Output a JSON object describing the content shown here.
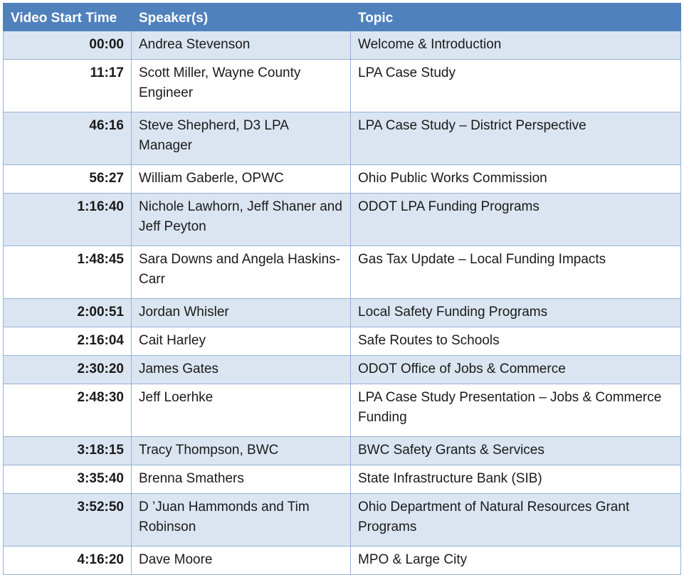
{
  "headers": {
    "time": "Video Start Time",
    "speaker": "Speaker(s)",
    "topic": "Topic"
  },
  "rows": [
    {
      "time": "00:00",
      "speaker": "Andrea Stevenson",
      "topic": "Welcome & Introduction"
    },
    {
      "time": "11:17",
      "speaker": "Scott Miller, Wayne County Engineer",
      "topic": "LPA Case Study"
    },
    {
      "time": "46:16",
      "speaker": "Steve Shepherd, D3 LPA Manager",
      "topic": "LPA Case Study – District Perspective"
    },
    {
      "time": "56:27",
      "speaker": "William Gaberle, OPWC",
      "topic": "Ohio Public Works Commission"
    },
    {
      "time": "1:16:40",
      "speaker": "Nichole Lawhorn, Jeff Shaner and Jeff Peyton",
      "topic": "ODOT LPA Funding Programs"
    },
    {
      "time": "1:48:45",
      "speaker": "Sara Downs and Angela Haskins-Carr",
      "topic": "Gas Tax Update – Local Funding Impacts"
    },
    {
      "time": "2:00:51",
      "speaker": "Jordan Whisler",
      "topic": "Local Safety Funding Programs"
    },
    {
      "time": "2:16:04",
      "speaker": "Cait Harley",
      "topic": "Safe Routes to Schools"
    },
    {
      "time": "2:30:20",
      "speaker": "James Gates",
      "topic": "ODOT Office of Jobs & Commerce"
    },
    {
      "time": "2:48:30",
      "speaker": "Jeff Loerhke",
      "topic": "LPA Case Study Presentation – Jobs & Commerce Funding"
    },
    {
      "time": "3:18:15",
      "speaker": "Tracy Thompson, BWC",
      "topic": "BWC Safety Grants & Services"
    },
    {
      "time": "3:35:40",
      "speaker": "Brenna Smathers",
      "topic": "State Infrastructure Bank (SIB)"
    },
    {
      "time": "3:52:50",
      "speaker": "D ’Juan Hammonds and Tim Robinson",
      "topic": "Ohio Department of Natural Resources Grant Programs"
    },
    {
      "time": "4:16:20",
      "speaker": "Dave Moore",
      "topic": "MPO & Large City"
    }
  ]
}
